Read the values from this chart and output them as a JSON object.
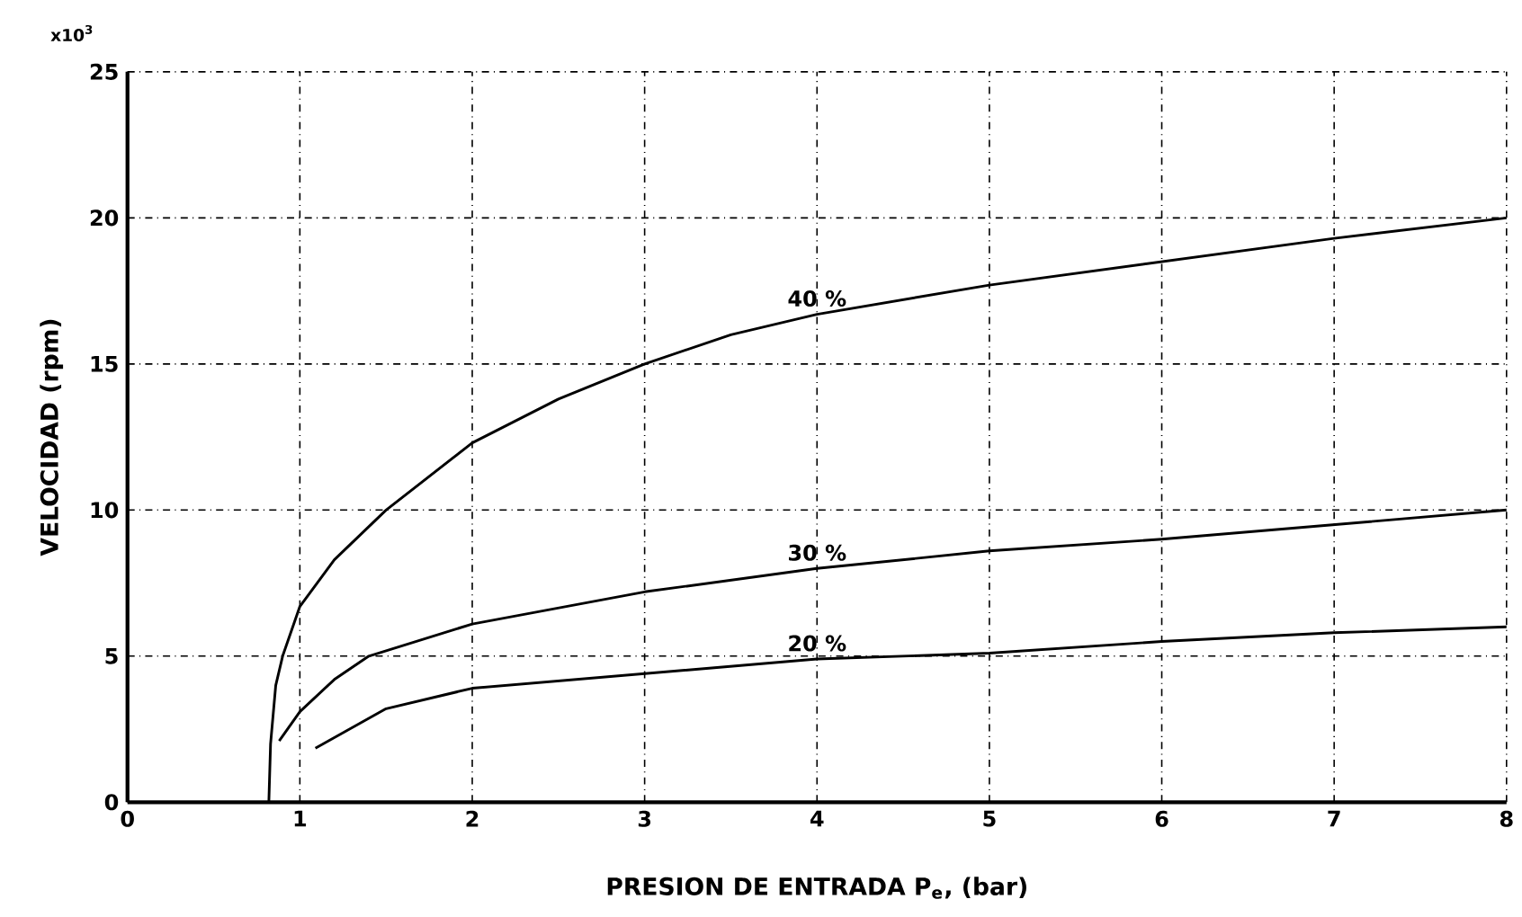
{
  "chart_data": {
    "type": "line",
    "xlabel": "PRESION DE ENTRADA P$_{e}$, (bar)",
    "ylabel": "VELOCIDAD (rpm)",
    "annotations": [
      "x10$^{3}$"
    ],
    "xlim": [
      0,
      8
    ],
    "ylim": [
      0,
      25
    ],
    "xticks": [
      0,
      1,
      2,
      3,
      4,
      5,
      6,
      7,
      8
    ],
    "yticks": [
      0,
      5,
      10,
      15,
      20,
      25
    ],
    "grid": true,
    "marker": "none",
    "line_style": "solid",
    "series": [
      {
        "name": "40 %",
        "color": "#000000",
        "x": [
          0.82,
          0.83,
          0.86,
          0.9,
          1,
          1.2,
          1.5,
          2,
          2.5,
          3,
          3.5,
          4,
          5,
          6,
          7,
          8
        ],
        "values": [
          0,
          2,
          4,
          5,
          6.7,
          8.3,
          10,
          12.3,
          13.8,
          15,
          16,
          16.7,
          17.7,
          18.5,
          19.3,
          20
        ]
      },
      {
        "name": "30 %",
        "color": "#000000",
        "x": [
          0.88,
          1,
          1.2,
          1.4,
          2,
          3,
          4,
          5,
          6,
          7,
          8
        ],
        "values": [
          2.1,
          3.1,
          4.2,
          5,
          6.1,
          7.2,
          8,
          8.6,
          9,
          9.5,
          10
        ]
      },
      {
        "name": "20 %",
        "color": "#000000",
        "x": [
          1.09,
          1.5,
          2,
          3,
          4,
          5,
          6,
          7,
          8
        ],
        "values": [
          1.85,
          3.2,
          3.9,
          4.4,
          4.9,
          5.1,
          5.5,
          5.8,
          6
        ]
      }
    ]
  }
}
